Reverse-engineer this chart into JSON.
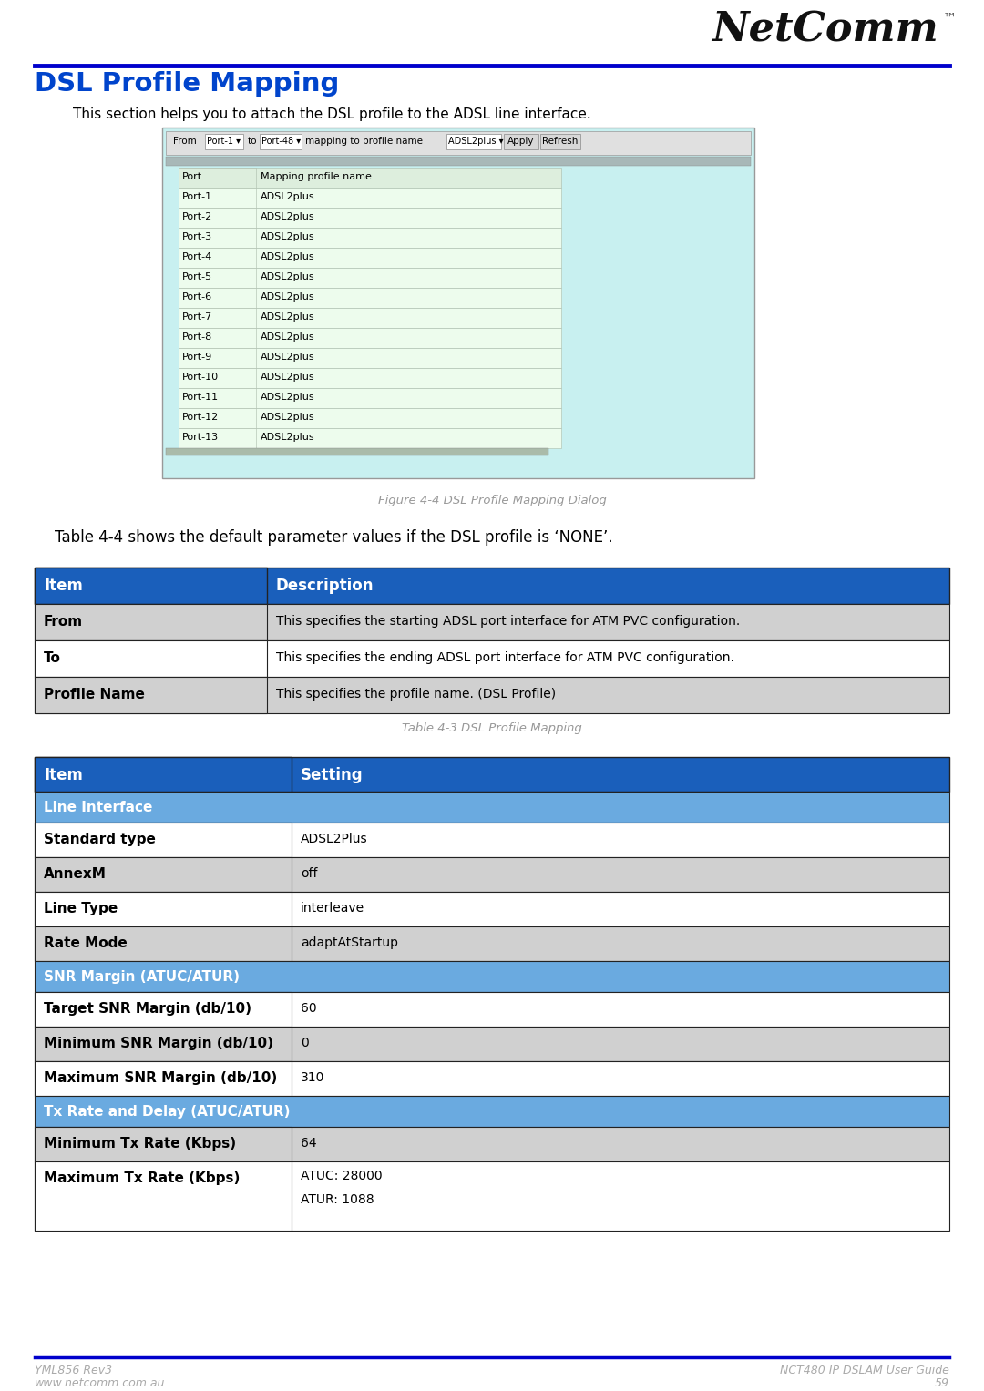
{
  "page_title": "DSL Profile Mapping",
  "header_line_color": "#0000cc",
  "title_color": "#0044cc",
  "intro_text": "This section helps you to attach the DSL profile to the ADSL line interface.",
  "screenshot_bg": "#c8f0f0",
  "screenshot_ports": [
    "Port",
    "Port-1",
    "Port-2",
    "Port-3",
    "Port-4",
    "Port-5",
    "Port-6",
    "Port-7",
    "Port-8",
    "Port-9",
    "Port-10",
    "Port-11",
    "Port-12",
    "Port-13"
  ],
  "screenshot_values": [
    "Mapping profile name",
    "ADSL2plus",
    "ADSL2plus",
    "ADSL2plus",
    "ADSL2plus",
    "ADSL2plus",
    "ADSL2plus",
    "ADSL2plus",
    "ADSL2plus",
    "ADSL2plus",
    "ADSL2plus",
    "ADSL2plus",
    "ADSL2plus",
    "ADSL2plus"
  ],
  "figure_caption": "Figure 4-4 DSL Profile Mapping Dialog",
  "table43_intro": "Table 4-4 shows the default parameter values if the DSL profile is ‘NONE’.",
  "table43_caption": "Table 4-3 DSL Profile Mapping",
  "table43_header": [
    "Item",
    "Description"
  ],
  "table43_rows": [
    [
      "From",
      "This specifies the starting ADSL port interface for ATM PVC configuration."
    ],
    [
      "To",
      "This specifies the ending ADSL port interface for ATM PVC configuration."
    ],
    [
      "Profile Name",
      "This specifies the profile name. (DSL Profile)"
    ]
  ],
  "table44_header": [
    "Item",
    "Setting"
  ],
  "table44_sections": [
    {
      "section_label": "Line Interface",
      "rows": [
        [
          "Standard type",
          "ADSL2Plus"
        ],
        [
          "AnnexM",
          "off"
        ],
        [
          "Line Type",
          "interleave"
        ],
        [
          "Rate Mode",
          "adaptAtStartup"
        ]
      ]
    },
    {
      "section_label": "SNR Margin (ATUC/ATUR)",
      "rows": [
        [
          "Target SNR Margin (db/10)",
          "60"
        ],
        [
          "Minimum SNR Margin (db/10)",
          "0"
        ],
        [
          "Maximum SNR Margin (db/10)",
          "310"
        ]
      ]
    },
    {
      "section_label": "Tx Rate and Delay (ATUC/ATUR)",
      "rows": [
        [
          "Minimum Tx Rate (Kbps)",
          "64"
        ],
        [
          "Maximum Tx Rate (Kbps)",
          "ATUC: 28000\nATUR: 1088"
        ]
      ]
    }
  ],
  "table_header_bg": "#1a5fbb",
  "table_header_text": "#ffffff",
  "table_section_bg": "#6aaae0",
  "table_section_text": "#ffffff",
  "table_row_bg_white": "#ffffff",
  "table_row_bg_gray": "#d0d0d0",
  "table_border_color": "#222222",
  "footer_line_color": "#0000cc",
  "footer_left1": "YML856 Rev3",
  "footer_left2": "www.netcomm.com.au",
  "footer_right1": "NCT480 IP DSLAM User Guide",
  "footer_right2": "59",
  "footer_text_color": "#aaaaaa"
}
